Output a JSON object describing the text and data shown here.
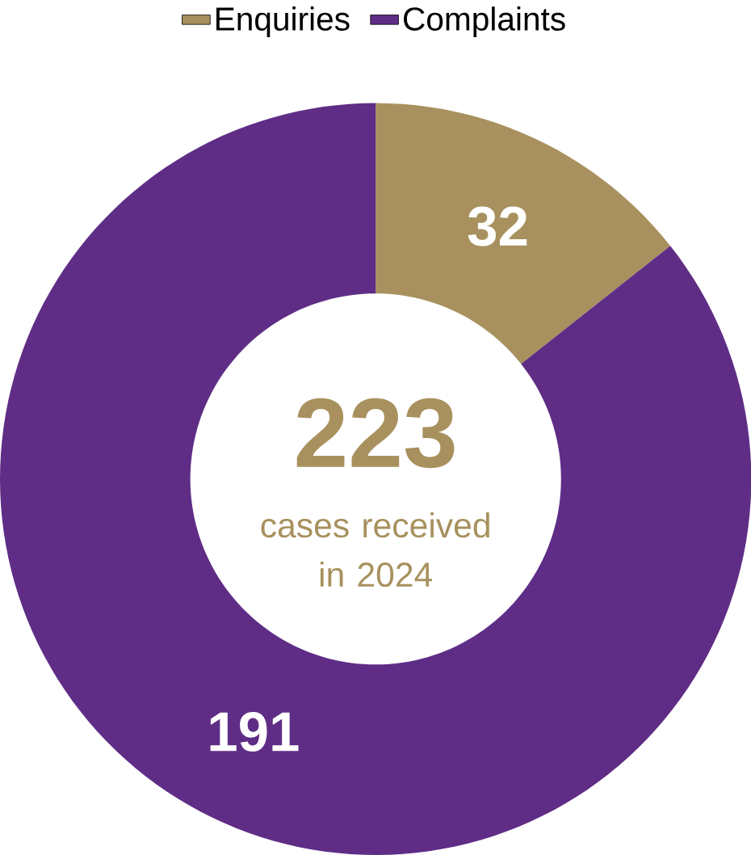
{
  "chart_data": {
    "type": "donut",
    "categories": [
      "Enquiries",
      "Complaints"
    ],
    "values": [
      32,
      191
    ],
    "colors": [
      "#a8915e",
      "#5f2d86"
    ],
    "data_labels": true,
    "legend": "top",
    "annotations": [
      "223",
      "cases received in 2024"
    ]
  }
}
